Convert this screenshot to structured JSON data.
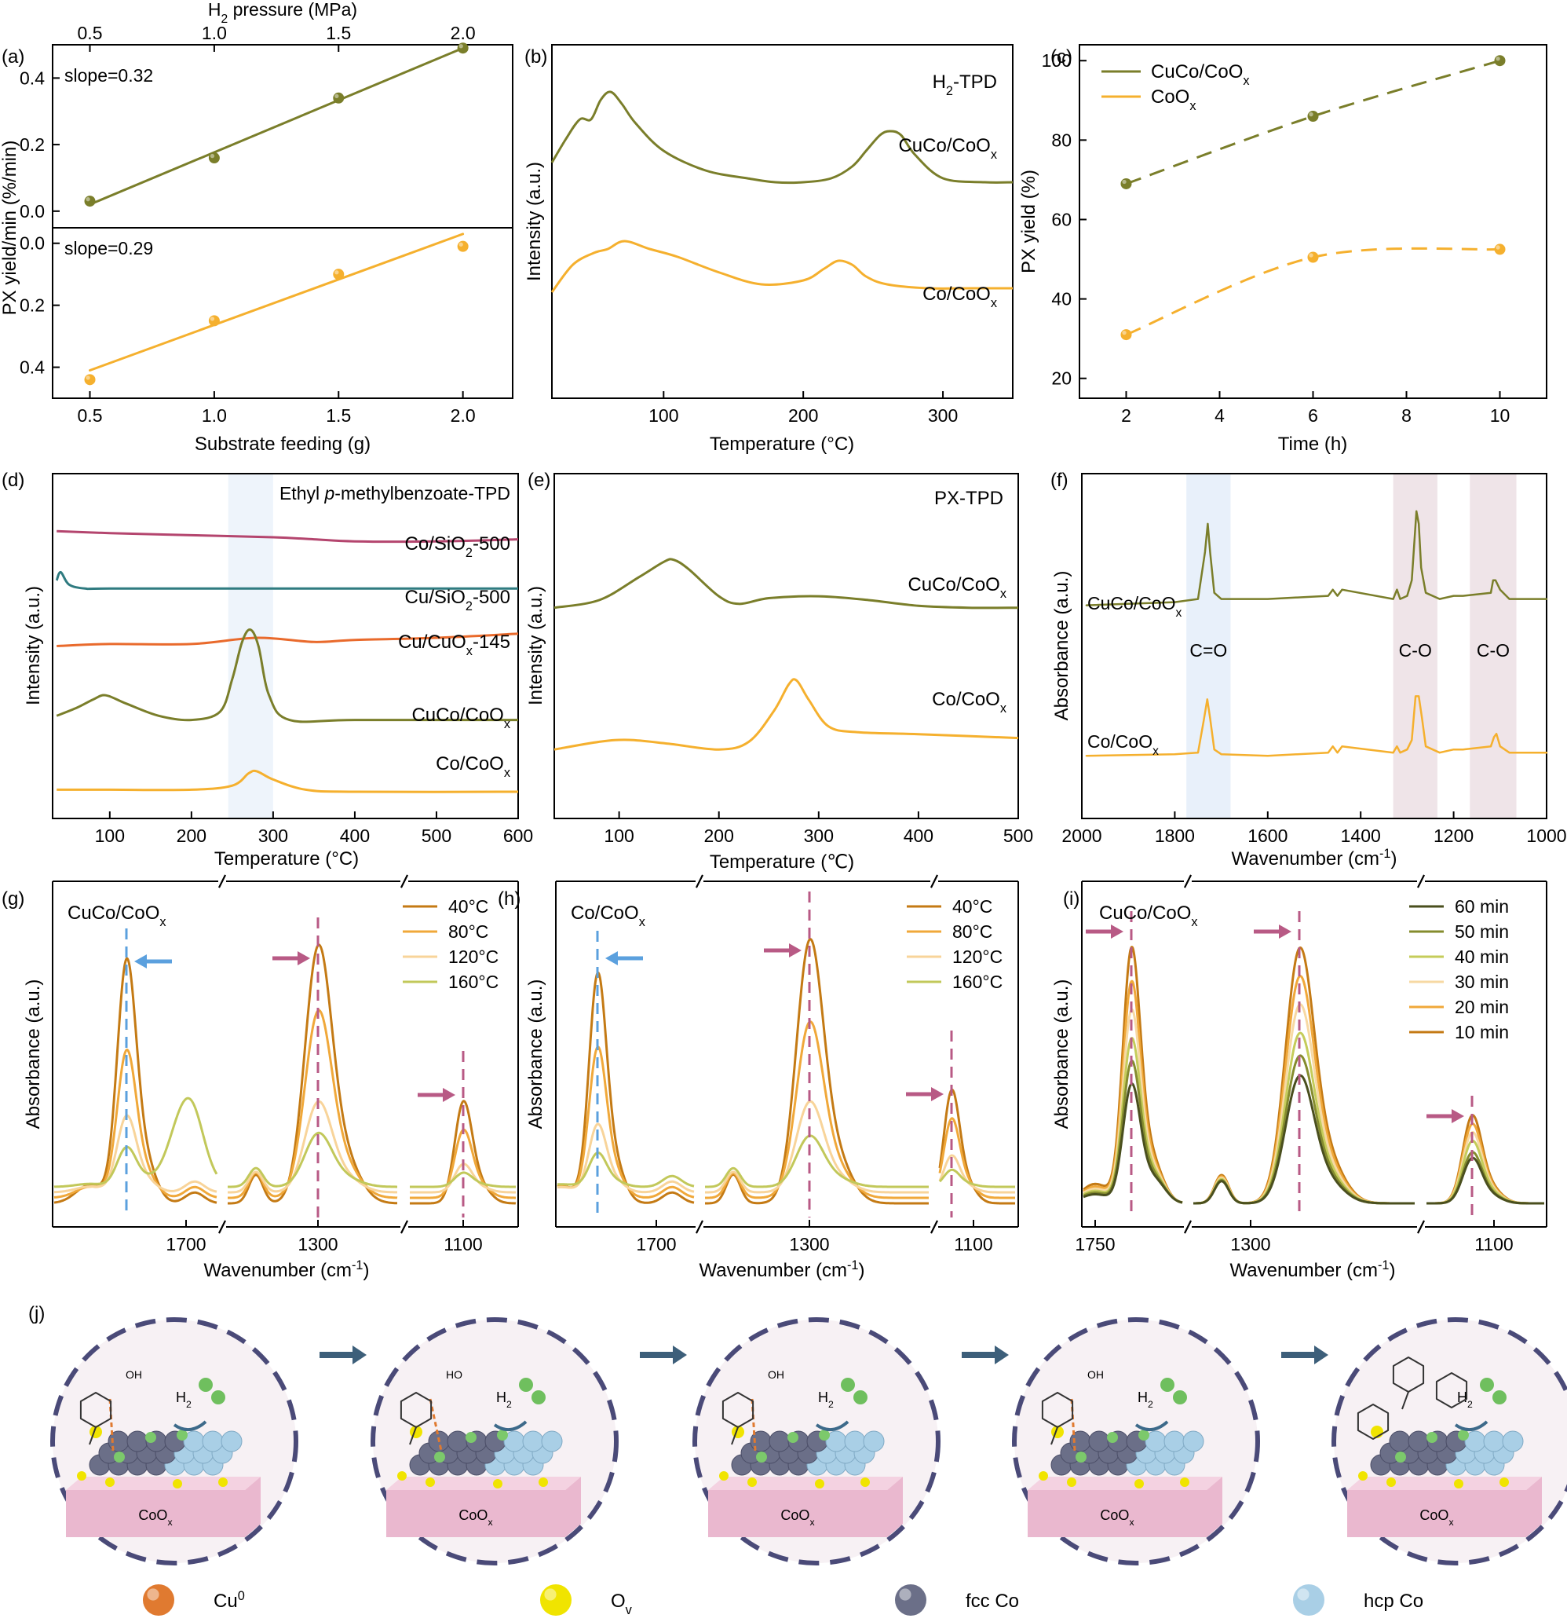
{
  "figure": {
    "colors": {
      "olive": "#7a7e2a",
      "orange": "#f5b02e",
      "pink": "#b4456e",
      "teal": "#2f7b80",
      "red": "#e96a2c",
      "blue": "#5ba0de",
      "mauve": "#b85a85"
    },
    "legend_j": [
      {
        "label": "Cu",
        "sup": "0",
        "color": "#e07a30"
      },
      {
        "label": "O",
        "sub": "v",
        "color": "#f0e400"
      },
      {
        "label": "fcc Co",
        "color": "#6b6f88"
      },
      {
        "label": "hcp Co",
        "color": "#a9cfe6"
      }
    ]
  },
  "chart_data": [
    {
      "id": "a",
      "panel_label": "(a)",
      "type": "scatter",
      "xlabel": "Substrate feeding (g)",
      "top_axis_label": "H₂ pressure (MPa)",
      "ylabel": "PX yield/min (%/min)",
      "x_ticks": [
        "0.5",
        "1.0",
        "1.5",
        "2.0"
      ],
      "top_ticks": [
        "0.5",
        "1.0",
        "1.5",
        "2.0"
      ],
      "upper": {
        "slope_label": "slope=0.32",
        "y_ticks": [
          "0.0",
          "0.2",
          "0.4"
        ],
        "ylim": [
          -0.05,
          0.5
        ],
        "x": [
          0.5,
          1.0,
          1.5,
          2.0
        ],
        "y": [
          0.03,
          0.16,
          0.34,
          0.49
        ],
        "fit": [
          [
            0.5,
            0.02
          ],
          [
            2.0,
            0.49
          ]
        ]
      },
      "lower": {
        "slope_label": "slope=0.29",
        "y_ticks": [
          "0.0",
          "0.2",
          "0.4"
        ],
        "ylim": [
          -0.05,
          0.5
        ],
        "x": [
          0.5,
          1.0,
          1.5,
          2.0
        ],
        "y": [
          0.44,
          0.25,
          0.1,
          0.01
        ],
        "fit": [
          [
            0.5,
            0.41
          ],
          [
            2.0,
            -0.03
          ]
        ]
      }
    },
    {
      "id": "b",
      "panel_label": "(b)",
      "type": "line",
      "xlabel": "Temperature (°C)",
      "ylabel": "Intensity (a.u.)",
      "x_ticks": [
        "100",
        "200",
        "300"
      ],
      "xlim": [
        20,
        350
      ],
      "annotation": "H₂-TPD",
      "series": [
        {
          "name": "CuCo/CoOₓ",
          "x": [
            20,
            30,
            40,
            48,
            55,
            62,
            70,
            80,
            100,
            130,
            160,
            180,
            200,
            220,
            235,
            245,
            255,
            262,
            270,
            280,
            300,
            330,
            350
          ],
          "y": [
            8.0,
            8.6,
            9.1,
            9.1,
            9.6,
            9.8,
            9.5,
            9.0,
            8.3,
            7.8,
            7.6,
            7.5,
            7.5,
            7.6,
            7.9,
            8.3,
            8.7,
            8.8,
            8.7,
            8.2,
            7.6,
            7.5,
            7.5
          ]
        },
        {
          "name": "Co/CoOₓ",
          "x": [
            20,
            35,
            50,
            60,
            72,
            90,
            110,
            140,
            170,
            200,
            215,
            225,
            235,
            245,
            260,
            290,
            320,
            350
          ],
          "y": [
            4.7,
            5.4,
            5.7,
            5.8,
            6.0,
            5.8,
            5.6,
            5.2,
            4.9,
            5.0,
            5.3,
            5.5,
            5.4,
            5.1,
            4.9,
            4.8,
            4.8,
            4.8
          ]
        }
      ]
    },
    {
      "id": "c",
      "panel_label": "(c)",
      "type": "line",
      "xlabel": "Time (h)",
      "ylabel": "PX yield (%)",
      "x_ticks": [
        "2",
        "4",
        "6",
        "8",
        "10"
      ],
      "y_ticks": [
        "20",
        "40",
        "60",
        "80",
        "100"
      ],
      "xlim": [
        1,
        11
      ],
      "ylim": [
        15,
        104
      ],
      "series": [
        {
          "name": "CuCo/CoOₓ",
          "x": [
            2,
            6,
            10
          ],
          "y": [
            69,
            86,
            100
          ]
        },
        {
          "name": "CoOₓ",
          "x": [
            2,
            6,
            10
          ],
          "y": [
            31,
            50.5,
            52.5
          ]
        }
      ]
    },
    {
      "id": "d",
      "panel_label": "(d)",
      "type": "line",
      "xlabel": "Temperature (°C)",
      "ylabel": "Intensity (a.u.)",
      "x_ticks": [
        "100",
        "200",
        "300",
        "400",
        "500",
        "600"
      ],
      "xlim": [
        30,
        600
      ],
      "annotation": {
        "pre": "Ethyl ",
        "italic": "p",
        "post": "-methylbenzoate-TPD"
      },
      "highlight": [
        245,
        300
      ],
      "series": [
        {
          "name": "Co/SiO₂-500",
          "x": [
            35,
            100,
            200,
            300,
            350,
            400,
            500,
            600
          ],
          "y": [
            8.6,
            8.55,
            8.5,
            8.45,
            8.4,
            8.35,
            8.35,
            8.4
          ]
        },
        {
          "name": "Cu/SiO₂-500",
          "x": [
            35,
            40,
            50,
            70,
            100,
            300,
            600
          ],
          "y": [
            7.4,
            7.6,
            7.3,
            7.2,
            7.2,
            7.2,
            7.2
          ]
        },
        {
          "name": "Cu/CuOₓ-145",
          "x": [
            35,
            100,
            200,
            280,
            350,
            400,
            500,
            600
          ],
          "y": [
            5.8,
            5.85,
            5.85,
            6.0,
            5.9,
            5.95,
            6.0,
            6.1
          ]
        },
        {
          "name": "CuCo/CoOₓ",
          "x": [
            35,
            60,
            80,
            95,
            120,
            160,
            200,
            235,
            250,
            262,
            272,
            282,
            295,
            320,
            400,
            600
          ],
          "y": [
            4.1,
            4.3,
            4.5,
            4.6,
            4.4,
            4.1,
            4.0,
            4.2,
            5.0,
            5.9,
            6.2,
            5.8,
            4.6,
            4.0,
            4.0,
            4.0
          ]
        },
        {
          "name": "Co/CoOₓ",
          "x": [
            35,
            100,
            200,
            250,
            270,
            280,
            300,
            340,
            400,
            600
          ],
          "y": [
            2.3,
            2.3,
            2.3,
            2.4,
            2.7,
            2.75,
            2.55,
            2.3,
            2.25,
            2.25
          ]
        }
      ]
    },
    {
      "id": "e",
      "panel_label": "(e)",
      "type": "line",
      "xlabel": "Temperature (℃)",
      "ylabel": "Intensity (a.u.)",
      "x_ticks": [
        "100",
        "200",
        "300",
        "400",
        "500"
      ],
      "xlim": [
        35,
        500
      ],
      "annotation": "PX-TPD",
      "series": [
        {
          "name": "CuCo/CoOₓ",
          "x": [
            35,
            80,
            120,
            145,
            155,
            170,
            200,
            220,
            250,
            300,
            350,
            400,
            450,
            500
          ],
          "y": [
            7.0,
            7.2,
            7.8,
            8.2,
            8.25,
            8.0,
            7.3,
            7.1,
            7.25,
            7.3,
            7.2,
            7.05,
            7.0,
            7.0
          ]
        },
        {
          "name": "Co/CoOₓ",
          "x": [
            35,
            80,
            110,
            150,
            200,
            230,
            255,
            270,
            278,
            290,
            310,
            340,
            400,
            500
          ],
          "y": [
            3.3,
            3.5,
            3.55,
            3.45,
            3.3,
            3.5,
            4.3,
            5.0,
            5.1,
            4.6,
            3.9,
            3.75,
            3.7,
            3.6
          ]
        }
      ]
    },
    {
      "id": "f",
      "panel_label": "(f)",
      "type": "line",
      "xlabel": "Wavenumber (cm⁻¹)",
      "ylabel": "Absorbance (a.u.)",
      "x_ticks": [
        "2000",
        "1800",
        "1600",
        "1400",
        "1200",
        "1000"
      ],
      "xlim": [
        2000,
        1000
      ],
      "x_reversed": true,
      "bands": [
        {
          "label": "C=O",
          "range": [
            1775,
            1680
          ],
          "color": "#e8f0fa"
        },
        {
          "label": "C-O",
          "range": [
            1330,
            1235
          ],
          "color": "#efe4e8"
        },
        {
          "label": "C-O",
          "range": [
            1165,
            1065
          ],
          "color": "#efe4e8"
        }
      ],
      "series": [
        {
          "name": "CuCo/CoOₓ",
          "x": [
            1990,
            1800,
            1750,
            1735,
            1729,
            1724,
            1715,
            1700,
            1600,
            1470,
            1460,
            1450,
            1440,
            1330,
            1322,
            1315,
            1300,
            1290,
            1280,
            1275,
            1270,
            1260,
            1230,
            1200,
            1180,
            1120,
            1115,
            1110,
            1100,
            1080,
            1040,
            1000
          ],
          "y": [
            7.8,
            7.9,
            8.0,
            9.5,
            10.4,
            9.5,
            8.2,
            8.0,
            8.0,
            8.1,
            8.3,
            8.1,
            8.3,
            8.0,
            8.3,
            8.0,
            8.1,
            8.6,
            10.8,
            10.4,
            9.0,
            8.2,
            8.0,
            8.1,
            8.1,
            8.2,
            8.6,
            8.6,
            8.3,
            8.0,
            8.0,
            8.0
          ]
        },
        {
          "name": "Co/CoOₓ",
          "x": [
            1990,
            1800,
            1750,
            1738,
            1730,
            1724,
            1715,
            1700,
            1600,
            1470,
            1460,
            1450,
            1440,
            1330,
            1322,
            1315,
            1300,
            1290,
            1282,
            1275,
            1268,
            1260,
            1230,
            1200,
            1180,
            1120,
            1113,
            1108,
            1100,
            1080,
            1040,
            1000
          ],
          "y": [
            3.0,
            3.05,
            3.1,
            4.1,
            4.8,
            4.2,
            3.2,
            3.05,
            3.0,
            3.1,
            3.3,
            3.1,
            3.3,
            3.1,
            3.3,
            3.1,
            3.2,
            3.5,
            4.9,
            4.9,
            4.2,
            3.3,
            3.1,
            3.2,
            3.2,
            3.3,
            3.6,
            3.7,
            3.3,
            3.1,
            3.1,
            3.1
          ]
        }
      ]
    },
    {
      "id": "g",
      "panel_label": "(g)",
      "type": "line",
      "sample": "CuCo/CoOₓ",
      "xlabel": "Wavenumber (cm⁻¹)",
      "ylabel": "Absorbance (a.u.)",
      "x_ticks": [
        "1700",
        "1300",
        "1100"
      ],
      "legend": [
        "40°C",
        "80°C",
        "120°C",
        "160°C"
      ],
      "peaks": {
        "segment1": 1735,
        "segment2": 1270,
        "segment3": 1110
      },
      "series_peak_heights": {
        "40°C": [
          0.86,
          0.91,
          0.36
        ],
        "80°C": [
          0.52,
          0.66,
          0.24
        ],
        "120°C": [
          0.27,
          0.32,
          0.1
        ],
        "160°C": [
          0.14,
          0.19,
          0.05
        ]
      },
      "shoulder_160C": {
        "x": 1700,
        "y": 0.3
      }
    },
    {
      "id": "h",
      "panel_label": "(h)",
      "type": "line",
      "sample": "Co/CoOₓ",
      "xlabel": "Wavenumber (cm⁻¹)",
      "ylabel": "Absorbance (a.u.)",
      "x_ticks": [
        "1700",
        "1300",
        "1100"
      ],
      "legend": [
        "40°C",
        "80°C",
        "120°C",
        "160°C"
      ],
      "peaks": {
        "segment1": 1735,
        "segment2": 1270,
        "segment3": 1110
      },
      "series_peak_heights": {
        "40°C": [
          0.81,
          0.93,
          0.4
        ],
        "80°C": [
          0.53,
          0.62,
          0.28
        ],
        "120°C": [
          0.24,
          0.32,
          0.13
        ],
        "160°C": [
          0.12,
          0.18,
          0.06
        ]
      }
    },
    {
      "id": "i",
      "panel_label": "(i)",
      "type": "line",
      "sample": "CuCo/CoOₓ",
      "xlabel": "Wavenumber (cm⁻¹)",
      "ylabel": "Absorbance (a.u.)",
      "x_ticks": [
        "1750",
        "1300",
        "1100"
      ],
      "legend": [
        "60 min",
        "50 min",
        "40 min",
        "30 min",
        "20 min",
        "10 min"
      ],
      "peaks": {
        "segment1": 1735,
        "segment2": 1270,
        "segment3": 1110
      },
      "series_peak_heights": {
        "10 min": [
          0.9,
          0.9,
          0.31
        ],
        "20 min": [
          0.78,
          0.8,
          0.28
        ],
        "30 min": [
          0.68,
          0.7,
          0.25
        ],
        "40 min": [
          0.58,
          0.6,
          0.22
        ],
        "50 min": [
          0.5,
          0.52,
          0.18
        ],
        "60 min": [
          0.42,
          0.45,
          0.16
        ]
      }
    }
  ],
  "panel_j": {
    "panel_label": "(j)",
    "support_label": "CoO",
    "support_sub": "x",
    "h2_label": "H",
    "h2_sub": "2",
    "steps": [
      {
        "oh_labels": [
          "OH"
        ]
      },
      {
        "oh_labels": [
          "HO"
        ]
      },
      {
        "oh_labels": [
          "OH"
        ]
      },
      {
        "oh_labels": [
          "OH"
        ]
      },
      {
        "oh_labels": []
      }
    ]
  }
}
